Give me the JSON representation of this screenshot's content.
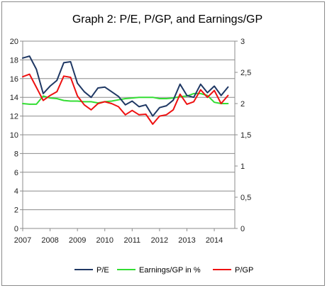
{
  "chart_data": {
    "type": "line",
    "title": "Graph 2: P/E,  P/GP, and Earnings/GP",
    "xlabel": "",
    "ylabel": "",
    "x_ticks": [
      "2007",
      "2008",
      "2009",
      "2010",
      "2011",
      "2012",
      "2013",
      "2014"
    ],
    "x_range": [
      2007.0,
      2014.75
    ],
    "ylim_left": [
      0,
      20
    ],
    "yticks_left": [
      "0",
      "2",
      "4",
      "6",
      "8",
      "10",
      "12",
      "14",
      "16",
      "18",
      "20"
    ],
    "ylim_right": [
      0,
      3
    ],
    "yticks_right": [
      "0",
      "0,5",
      "1",
      "1,5",
      "2",
      "2,5",
      "3"
    ],
    "grid": "horizontal",
    "legend_position": "bottom",
    "x": [
      2007.0,
      2007.25,
      2007.5,
      2007.75,
      2008.0,
      2008.25,
      2008.5,
      2008.75,
      2009.0,
      2009.25,
      2009.5,
      2009.75,
      2010.0,
      2010.25,
      2010.5,
      2010.75,
      2011.0,
      2011.25,
      2011.5,
      2011.75,
      2012.0,
      2012.25,
      2012.5,
      2012.75,
      2013.0,
      2013.25,
      2013.5,
      2013.75,
      2014.0,
      2014.25,
      2014.5
    ],
    "series": [
      {
        "name": "P/E",
        "axis": "left",
        "color": "#1f3864",
        "values": [
          18.2,
          18.4,
          17.0,
          14.4,
          15.2,
          15.8,
          17.7,
          17.8,
          15.5,
          14.6,
          14.0,
          15.0,
          15.1,
          14.6,
          14.1,
          13.2,
          13.6,
          13.0,
          13.2,
          12.0,
          12.9,
          13.1,
          13.7,
          15.4,
          14.2,
          14.0,
          15.4,
          14.5,
          15.2,
          14.2,
          15.1
        ]
      },
      {
        "name": "Earnings/GP  in %",
        "axis": "right",
        "color": "#33dd33",
        "values": [
          2.0,
          1.99,
          1.99,
          2.12,
          2.09,
          2.08,
          2.05,
          2.04,
          2.04,
          2.03,
          2.03,
          2.01,
          2.03,
          2.04,
          2.06,
          2.08,
          2.09,
          2.1,
          2.1,
          2.1,
          2.08,
          2.08,
          2.09,
          2.11,
          2.12,
          2.16,
          2.16,
          2.13,
          2.02,
          2.0,
          2.0
        ]
      },
      {
        "name": "P/GP",
        "axis": "right",
        "color": "#ee1111",
        "values": [
          2.43,
          2.47,
          2.26,
          2.05,
          2.13,
          2.19,
          2.44,
          2.42,
          2.12,
          1.98,
          1.9,
          2.0,
          2.03,
          2.0,
          1.95,
          1.82,
          1.89,
          1.82,
          1.83,
          1.67,
          1.8,
          1.82,
          1.9,
          2.15,
          1.99,
          2.03,
          2.22,
          2.1,
          2.21,
          2.0,
          2.13
        ]
      }
    ]
  }
}
